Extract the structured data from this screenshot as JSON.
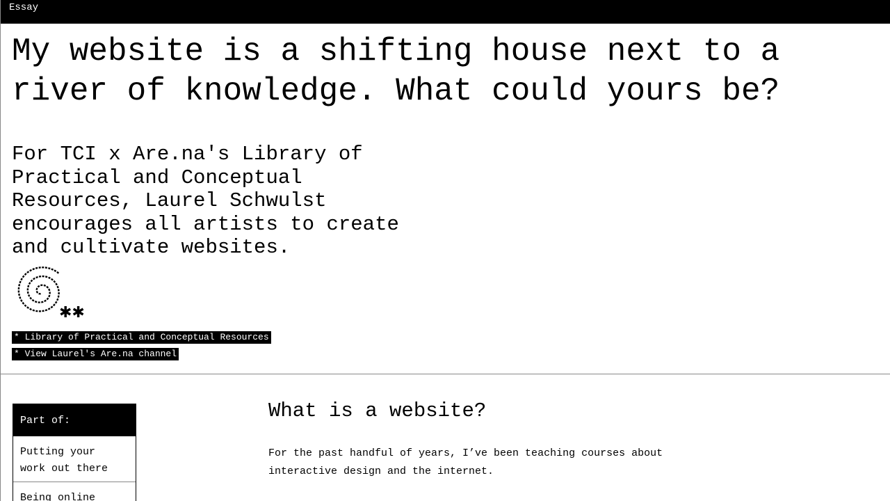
{
  "topbar": {
    "label": "Essay"
  },
  "article": {
    "headline": "My website is a shifting house next to a\nriver of knowledge. What could yours be?",
    "intro": "For TCI x Are.na's Library of\nPractical and Conceptual\nResources, Laurel Schwulst\nencourages all artists to create\nand cultivate websites.",
    "spiral_icon": "spiral-illustration",
    "links": [
      {
        "label": "* Library of Practical and Conceptual Resources"
      },
      {
        "label": "* View Laurel's Are.na channel"
      }
    ]
  },
  "sidebar": {
    "heading": "Part of:",
    "items": [
      {
        "label": "Putting your\nwork out there"
      },
      {
        "label": "Being online"
      }
    ]
  },
  "section": {
    "title": "What is a website?",
    "body": "For the past handful of years, I’ve been teaching courses about\ninteractive design and the internet."
  }
}
